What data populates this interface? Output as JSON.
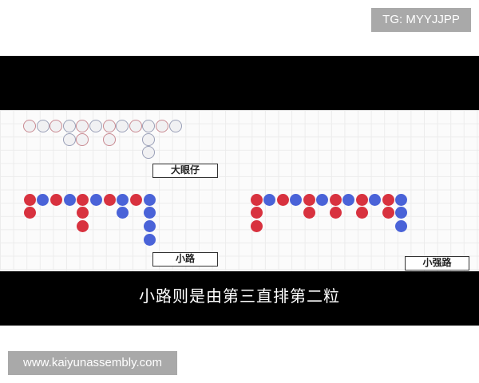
{
  "watermark_top": "TG: MYYJJPP",
  "watermark_bottom": "www.kaiyunassembly.com",
  "subtitle": "小路则是由第三直排第二粒",
  "colors": {
    "red": "#d8323f",
    "blue": "#4a63d8",
    "faint_red": "#c98a92",
    "faint_blue": "#9aa0b8"
  },
  "roads": {
    "big_eye": {
      "label": "大眼仔",
      "style": "faint",
      "columns": [
        [
          "R"
        ],
        [
          "B"
        ],
        [
          "R"
        ],
        [
          "B",
          "B"
        ],
        [
          "R",
          "R"
        ],
        [
          "B"
        ],
        [
          "R",
          "R"
        ],
        [
          "B"
        ],
        [
          "R"
        ],
        [
          "B",
          "B",
          "B"
        ],
        [
          "R"
        ],
        [
          "B"
        ]
      ]
    },
    "small": {
      "label": "小路",
      "style": "solid",
      "columns": [
        [
          "R",
          "R"
        ],
        [
          "B"
        ],
        [
          "R"
        ],
        [
          "B"
        ],
        [
          "R",
          "R",
          "R"
        ],
        [
          "B"
        ],
        [
          "R"
        ],
        [
          "B",
          "B"
        ],
        [
          "R"
        ],
        [
          "B",
          "B",
          "B",
          "B"
        ]
      ]
    },
    "cockroach": {
      "label": "小强路",
      "style": "solid",
      "columns": [
        [
          "R",
          "R",
          "R"
        ],
        [
          "B"
        ],
        [
          "R"
        ],
        [
          "B"
        ],
        [
          "R",
          "R"
        ],
        [
          "B"
        ],
        [
          "R",
          "R"
        ],
        [
          "B"
        ],
        [
          "R",
          "R"
        ],
        [
          "B"
        ],
        [
          "R",
          "R"
        ],
        [
          "B",
          "B",
          "B"
        ]
      ]
    }
  }
}
